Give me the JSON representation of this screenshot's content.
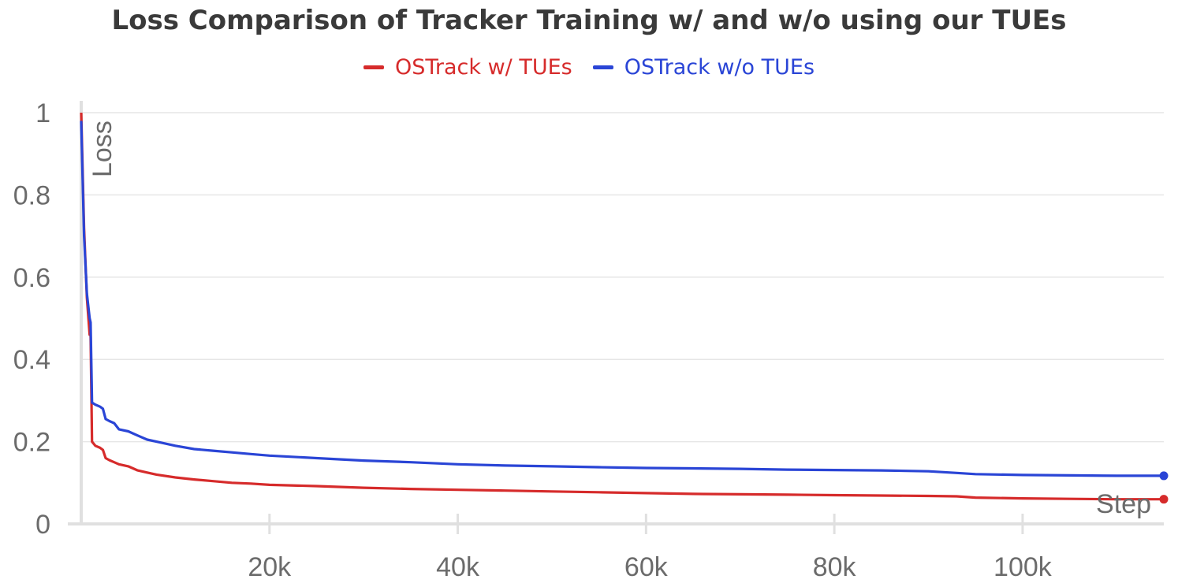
{
  "chart_data": {
    "type": "line",
    "title": "Loss Comparison of Tracker Training w/ and w/o using our TUEs",
    "xlabel": "Step",
    "ylabel": "Loss",
    "xlim": [
      0,
      115000
    ],
    "ylim": [
      0,
      1
    ],
    "xticks": [
      20000,
      40000,
      60000,
      80000,
      100000
    ],
    "xtick_labels": [
      "20k",
      "40k",
      "60k",
      "80k",
      "100k"
    ],
    "yticks": [
      0,
      0.2,
      0.4,
      0.6,
      0.8,
      1
    ],
    "ytick_labels": [
      "0",
      "0.2",
      "0.4",
      "0.6",
      "0.8",
      "1"
    ],
    "grid": true,
    "legend_position": "top-center",
    "series": [
      {
        "name": "OSTrack w/ TUEs",
        "color": "#d62b2b",
        "x": [
          0,
          300,
          600,
          900,
          1000,
          1150,
          1500,
          2000,
          2300,
          2600,
          3000,
          3500,
          4000,
          5000,
          6000,
          7000,
          8000,
          10000,
          12000,
          14000,
          16000,
          18000,
          20000,
          25000,
          30000,
          35000,
          40000,
          45000,
          50000,
          55000,
          60000,
          65000,
          70000,
          75000,
          80000,
          85000,
          90000,
          93000,
          95000,
          100000,
          105000,
          110000,
          115000
        ],
        "y": [
          1.0,
          0.72,
          0.55,
          0.46,
          0.46,
          0.2,
          0.19,
          0.185,
          0.18,
          0.16,
          0.155,
          0.15,
          0.145,
          0.14,
          0.13,
          0.125,
          0.12,
          0.113,
          0.108,
          0.104,
          0.1,
          0.098,
          0.095,
          0.092,
          0.088,
          0.085,
          0.083,
          0.081,
          0.079,
          0.077,
          0.075,
          0.073,
          0.072,
          0.071,
          0.07,
          0.069,
          0.068,
          0.067,
          0.064,
          0.062,
          0.061,
          0.06,
          0.06
        ]
      },
      {
        "name": "OSTrack w/o TUEs",
        "color": "#2a45d6",
        "x": [
          0,
          300,
          600,
          900,
          1000,
          1150,
          1500,
          2000,
          2300,
          2600,
          3000,
          3500,
          4000,
          5000,
          6000,
          7000,
          8000,
          10000,
          12000,
          14000,
          16000,
          18000,
          20000,
          25000,
          30000,
          35000,
          40000,
          45000,
          50000,
          55000,
          60000,
          65000,
          70000,
          75000,
          80000,
          85000,
          90000,
          93000,
          95000,
          100000,
          105000,
          110000,
          115000
        ],
        "y": [
          0.98,
          0.7,
          0.56,
          0.5,
          0.49,
          0.295,
          0.29,
          0.285,
          0.28,
          0.255,
          0.25,
          0.245,
          0.23,
          0.225,
          0.215,
          0.205,
          0.2,
          0.19,
          0.182,
          0.178,
          0.174,
          0.17,
          0.166,
          0.16,
          0.154,
          0.15,
          0.145,
          0.142,
          0.14,
          0.138,
          0.136,
          0.135,
          0.134,
          0.132,
          0.131,
          0.13,
          0.128,
          0.124,
          0.121,
          0.119,
          0.118,
          0.117,
          0.117
        ]
      }
    ]
  }
}
